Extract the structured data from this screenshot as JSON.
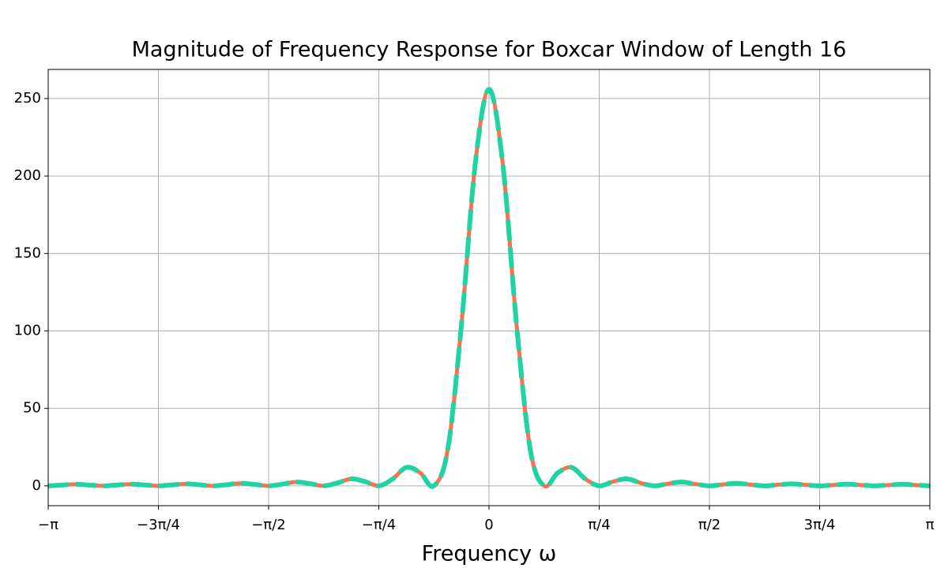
{
  "chart_data": {
    "type": "line",
    "title": "Magnitude of Frequency Response for Boxcar Window of Length 16",
    "xlabel": "Frequency ω",
    "x": [
      -3.1416,
      -3.0434,
      -2.9452,
      -2.8471,
      -2.7489,
      -2.6507,
      -2.5525,
      -2.4544,
      -2.3562,
      -2.258,
      -2.1598,
      -2.0617,
      -1.9635,
      -1.8653,
      -1.7671,
      -1.669,
      -1.5708,
      -1.4726,
      -1.3744,
      -1.2763,
      -1.1781,
      -1.0799,
      -0.9817,
      -0.8836,
      -0.7854,
      -0.6872,
      -0.589,
      -0.4909,
      -0.3927,
      -0.2945,
      -0.1963,
      -0.0982,
      0,
      0.0982,
      0.1963,
      0.2945,
      0.3927,
      0.4909,
      0.589,
      0.6872,
      0.7854,
      0.8836,
      0.9817,
      1.0799,
      1.1781,
      1.2763,
      1.3744,
      1.4726,
      1.5708,
      1.669,
      1.7671,
      1.8653,
      1.9635,
      2.0617,
      2.1598,
      2.258,
      2.3562,
      2.4544,
      2.5525,
      2.6507,
      2.7489,
      2.8471,
      2.9452,
      3.0434,
      3.1416
    ],
    "series": [
      {
        "color": "#f07550",
        "dashed": false,
        "values": [
          0,
          0.501,
          1.01,
          0.511,
          0,
          0.531,
          1.092,
          0.564,
          0,
          0.612,
          1.286,
          0.68,
          0,
          0.775,
          1.674,
          0.911,
          0,
          1.109,
          2.485,
          1.409,
          0,
          1.892,
          4.5,
          2.735,
          0,
          4.406,
          11.867,
          8.469,
          0,
          23.22,
          104.09,
          207.7,
          256,
          207.7,
          104.09,
          23.22,
          0,
          8.469,
          11.867,
          4.406,
          0,
          2.735,
          4.5,
          1.892,
          0,
          1.409,
          2.485,
          1.109,
          0,
          0.911,
          1.674,
          0.775,
          0,
          0.68,
          1.286,
          0.612,
          0,
          0.564,
          1.092,
          0.531,
          0,
          0.511,
          1.01,
          0.501,
          0
        ]
      },
      {
        "color": "#1fd3a2",
        "dashed": true,
        "values": [
          0,
          0.501,
          1.01,
          0.511,
          0,
          0.531,
          1.092,
          0.564,
          0,
          0.612,
          1.286,
          0.68,
          0,
          0.775,
          1.674,
          0.911,
          0,
          1.109,
          2.485,
          1.409,
          0,
          1.892,
          4.5,
          2.735,
          0,
          4.406,
          11.867,
          8.469,
          0,
          23.22,
          104.09,
          207.7,
          256,
          207.7,
          104.09,
          23.22,
          0,
          8.469,
          11.867,
          4.406,
          0,
          2.735,
          4.5,
          1.892,
          0,
          1.409,
          2.485,
          1.109,
          0,
          0.911,
          1.674,
          0.775,
          0,
          0.68,
          1.286,
          0.612,
          0,
          0.564,
          1.092,
          0.531,
          0,
          0.511,
          1.01,
          0.501,
          0
        ]
      }
    ],
    "xlim": [
      -3.1416,
      3.1416
    ],
    "xticks": [
      {
        "value": -3.1416,
        "label": "−π"
      },
      {
        "value": -2.3562,
        "label": "−3π/4"
      },
      {
        "value": -1.5708,
        "label": "−π/2"
      },
      {
        "value": -0.7854,
        "label": "−π/4"
      },
      0,
      {
        "value": 0.7854,
        "label": "π/4"
      },
      {
        "value": 1.5708,
        "label": "π/2"
      },
      {
        "value": 2.3562,
        "label": "3π/4"
      },
      {
        "value": 3.1416,
        "label": "π"
      }
    ],
    "ylim": [
      -12.8,
      268.8
    ],
    "yticks": [
      0,
      50,
      100,
      150,
      200,
      250
    ],
    "grid": true
  }
}
